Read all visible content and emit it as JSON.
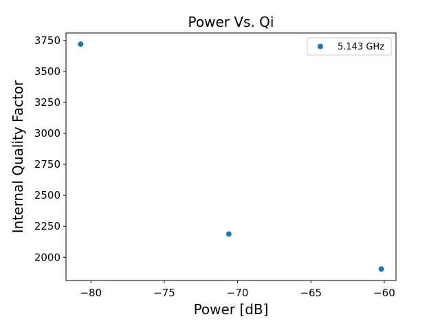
{
  "chart_data": {
    "type": "scatter",
    "title": "Power Vs. Qi",
    "xlabel": "Power [dB]",
    "ylabel": "Internal Quality Factor",
    "xlim": [
      -81.7,
      -59.2
    ],
    "ylim": [
      1813,
      3810
    ],
    "xticks": [
      -80,
      -75,
      -70,
      -65,
      -60
    ],
    "xtick_labels": [
      "−80",
      "−75",
      "−70",
      "−65",
      "−60"
    ],
    "yticks": [
      2000,
      2250,
      2500,
      2750,
      3000,
      3250,
      3500,
      3750
    ],
    "ytick_labels": [
      "2000",
      "2250",
      "2500",
      "2750",
      "3000",
      "3250",
      "3500",
      "3750"
    ],
    "grid": false,
    "legend_position": "top-right",
    "series": [
      {
        "name": "5.143 GHz",
        "color": "#1f77b4",
        "x": [
          -80.7,
          -70.6,
          -60.2
        ],
        "y": [
          3720,
          2188,
          1906
        ]
      }
    ]
  }
}
